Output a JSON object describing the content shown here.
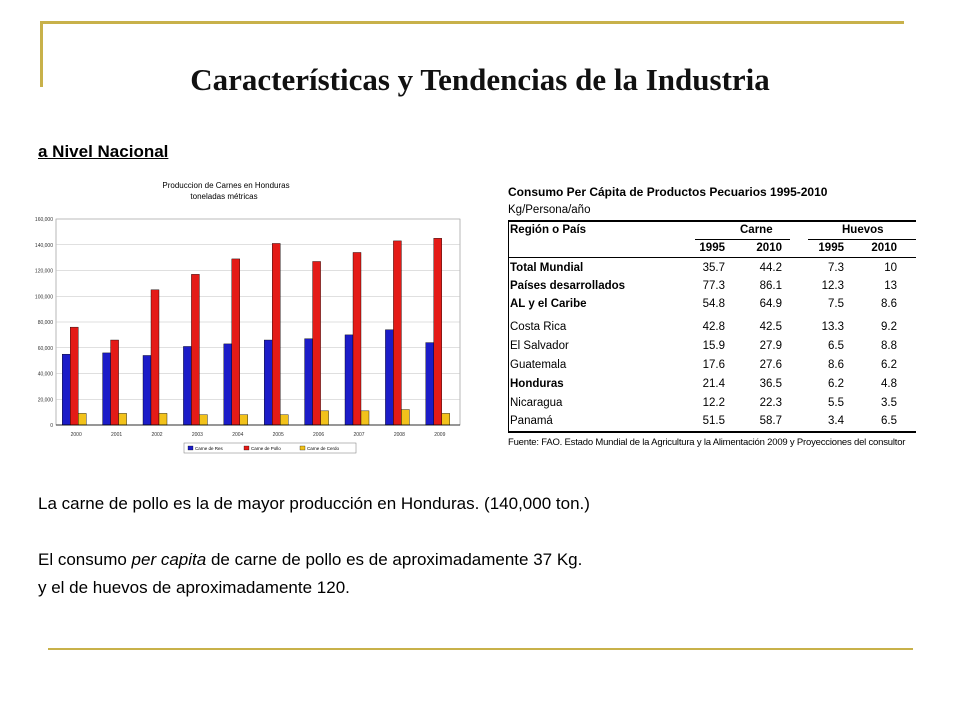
{
  "slide": {
    "title": "Características y Tendencias de la Industria",
    "subtitle": "a Nivel Nacional",
    "paragraphs": {
      "p1": "La carne de pollo es la de mayor producción en Honduras. (140,000 ton.)",
      "p2_before": "El consumo ",
      "p2_italic": "per capita",
      "p2_after": " de carne de pollo es de aproximadamente 37 Kg.",
      "p3": "y el de huevos de aproximadamente 120."
    }
  },
  "chart_data": {
    "type": "bar",
    "title": "Produccion de Carnes en Honduras",
    "subtitle": "toneladas métricas",
    "categories": [
      "2000",
      "2001",
      "2002",
      "2003",
      "2004",
      "2005",
      "2006",
      "2007",
      "2008",
      "2009"
    ],
    "ylim": [
      0,
      160000
    ],
    "yticks": [
      "0",
      "20,000",
      "40,000",
      "60,000",
      "80,000",
      "100,000",
      "120,000",
      "140,000",
      "160,000"
    ],
    "grid": true,
    "legend_placement": "bottom",
    "series": [
      {
        "name": "Carne de Res",
        "color": "#1c1cc8",
        "values": [
          55000,
          56000,
          54000,
          61000,
          63000,
          66000,
          67000,
          70000,
          74000,
          64000
        ]
      },
      {
        "name": "Carne de Pollo",
        "color": "#e41b17",
        "values": [
          76000,
          66000,
          105000,
          117000,
          129000,
          141000,
          127000,
          134000,
          143000,
          145000
        ]
      },
      {
        "name": "Carne de Cerdo",
        "color": "#f2c21b",
        "values": [
          9000,
          9000,
          9000,
          8000,
          8000,
          8000,
          11000,
          11000,
          12000,
          9000
        ]
      }
    ]
  },
  "table": {
    "title": "Consumo Per Cápita de Productos Pecuarios 1995-2010",
    "unit": "Kg/Persona/año",
    "col_region": "Región o País",
    "group_carne": "Carne",
    "group_huevos": "Huevos",
    "years": [
      "1995",
      "2010",
      "1995",
      "2010"
    ],
    "rows": [
      {
        "name": "Total Mundial",
        "bold": true,
        "values": [
          "35.7",
          "44.2",
          "7.3",
          "10"
        ]
      },
      {
        "name": "Países desarrollados",
        "bold": true,
        "values": [
          "77.3",
          "86.1",
          "12.3",
          "13"
        ]
      },
      {
        "name": "AL y el Caribe",
        "bold": true,
        "values": [
          "54.8",
          "64.9",
          "7.5",
          "8.6"
        ]
      },
      {
        "name": "Costa Rica",
        "bold": false,
        "values": [
          "42.8",
          "42.5",
          "13.3",
          "9.2"
        ]
      },
      {
        "name": "El Salvador",
        "bold": false,
        "values": [
          "15.9",
          "27.9",
          "6.5",
          "8.8"
        ]
      },
      {
        "name": "Guatemala",
        "bold": false,
        "values": [
          "17.6",
          "27.6",
          "8.6",
          "6.2"
        ]
      },
      {
        "name": "Honduras",
        "bold": true,
        "values": [
          "21.4",
          "36.5",
          "6.2",
          "4.8"
        ]
      },
      {
        "name": "Nicaragua",
        "bold": false,
        "values": [
          "12.2",
          "22.3",
          "5.5",
          "3.5"
        ]
      },
      {
        "name": "Panamá",
        "bold": false,
        "values": [
          "51.5",
          "58.7",
          "3.4",
          "6.5"
        ]
      }
    ],
    "source": "Fuente: FAO. Estado Mundial de la Agricultura y la Alimentación 2009 y Proyecciones del consultor"
  },
  "colors": {
    "gold_rule": "#c8b14a",
    "plot_bg": "#ffffff",
    "grid": "#c0c0c0"
  }
}
